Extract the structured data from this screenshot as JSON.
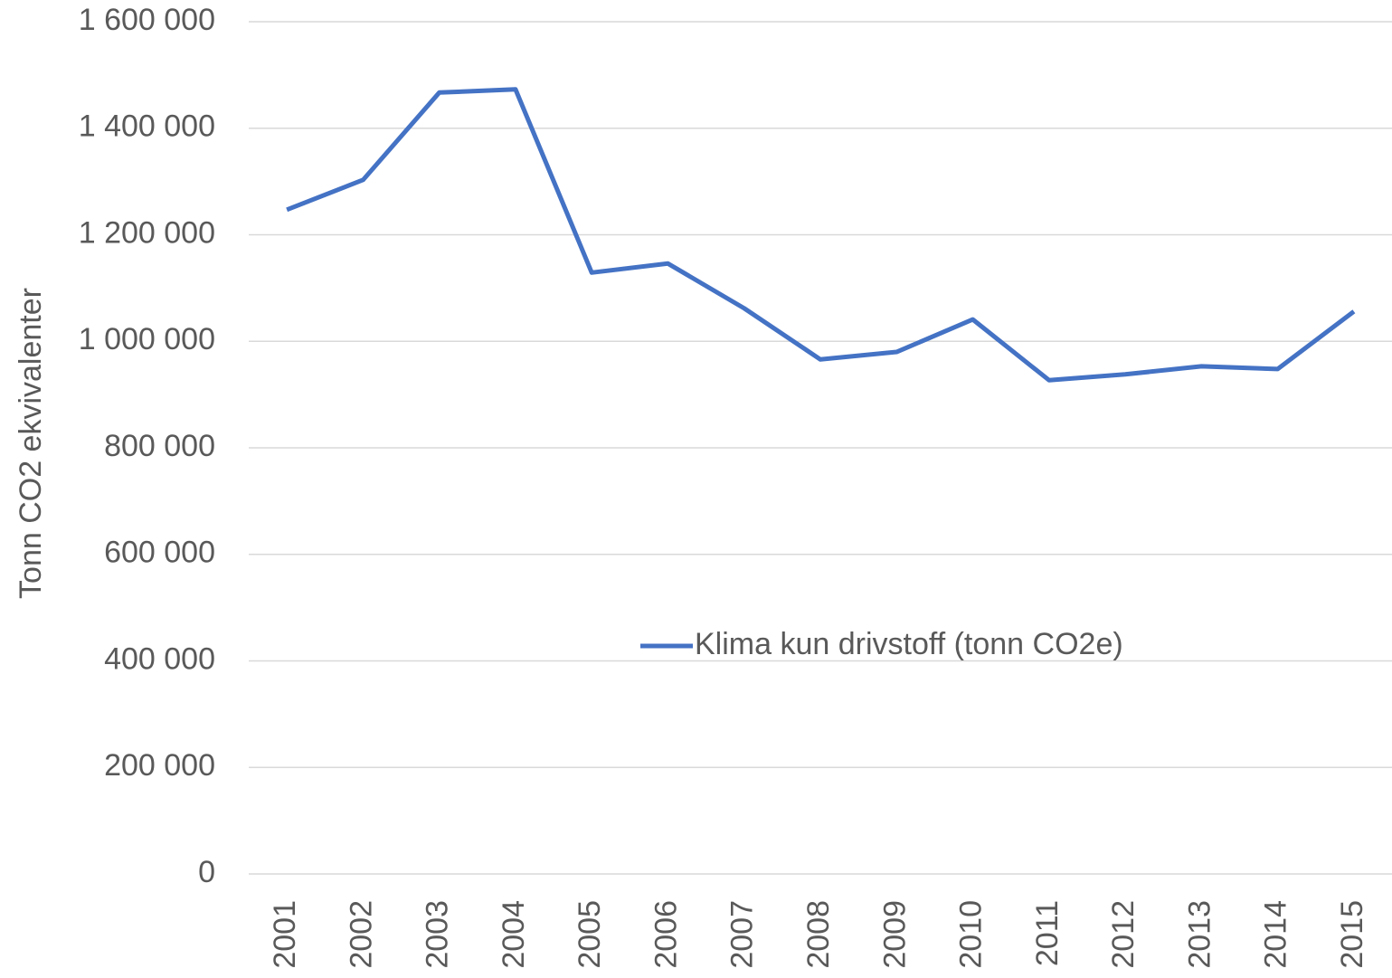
{
  "chart_data": {
    "type": "line",
    "y_label": "Tonn CO2 ekvivalenter",
    "categories": [
      "2001",
      "2002",
      "2003",
      "2004",
      "2005",
      "2006",
      "2007",
      "2008",
      "2009",
      "2010",
      "2011",
      "2012",
      "2013",
      "2014",
      "2015"
    ],
    "series": [
      {
        "name": "Klima kun drivstoff (tonn CO2e)",
        "color": "#4472c4",
        "values": [
          1247000,
          1303000,
          1467000,
          1473000,
          1129000,
          1146000,
          1062000,
          966000,
          980000,
          1041000,
          927000,
          938000,
          953000,
          948000,
          1056000
        ]
      }
    ],
    "ylim": [
      0,
      1600000
    ],
    "yticks": [
      0,
      {
        "value": 200000,
        "label": "200 000"
      },
      {
        "value": 400000,
        "label": "400 000"
      },
      {
        "value": 600000,
        "label": "600 000"
      },
      {
        "value": 800000,
        "label": "800 000"
      },
      {
        "value": 1000000,
        "label": "1 000 000"
      },
      {
        "value": 1200000,
        "label": "1 200 000"
      },
      {
        "value": 1400000,
        "label": "1 400 000"
      },
      {
        "value": 1600000,
        "label": "1 600 000"
      }
    ],
    "grid": true,
    "legend": "center"
  }
}
